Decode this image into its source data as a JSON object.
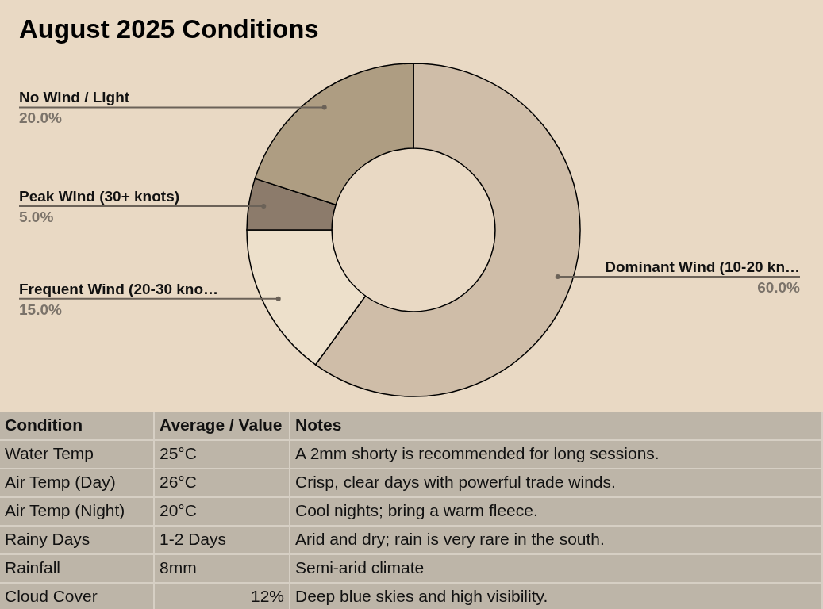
{
  "chart_data": [
    {
      "type": "donut",
      "title": "August 2025 Conditions",
      "categories": [
        "Dominant Wind (10-20 kn…",
        "Frequent Wind (20-30 kno…",
        "Peak Wind (30+ knots)",
        "No Wind / Light"
      ],
      "values": [
        60,
        15,
        5,
        20
      ],
      "colors": [
        "#cfbda8",
        "#ede0cb",
        "#8c7b6b",
        "#ae9d82"
      ],
      "value_labels": [
        "60.0%",
        "15.0%",
        "5.0%",
        "20.0%"
      ],
      "legend": false
    },
    {
      "type": "other",
      "categories": [
        "Condition",
        "Average / Value",
        "Notes"
      ],
      "cell_labels": [
        [
          "Water Temp",
          "25°C",
          "A 2mm shorty is recommended for long sessions."
        ],
        [
          "Air Temp (Day)",
          "26°C",
          "Crisp, clear days with powerful trade winds."
        ],
        [
          "Air Temp (Night)",
          "20°C",
          "Cool nights; bring a warm fleece."
        ],
        [
          "Rainy Days",
          "1-2 Days",
          "Arid and dry; rain is very rare in the south."
        ],
        [
          "Rainfall",
          "8mm",
          "Semi-arid climate"
        ],
        [
          "Cloud Cover",
          "12%",
          "Deep blue skies and high visibility."
        ]
      ]
    }
  ]
}
